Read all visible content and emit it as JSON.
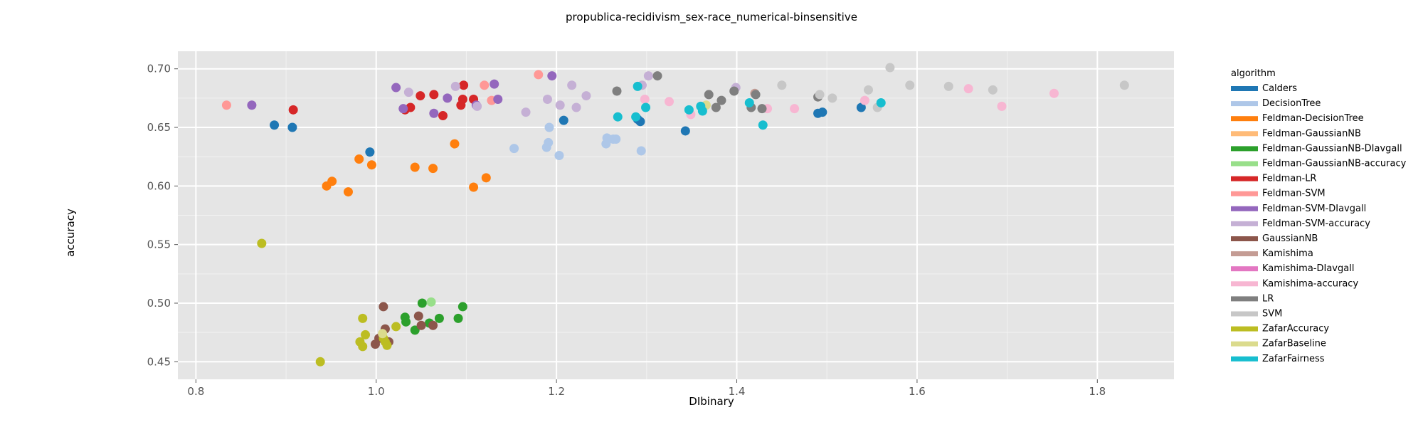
{
  "chart_data": {
    "type": "scatter",
    "title": "propublica-recidivism_sex-race_numerical-binsensitive",
    "xlabel": "DIbinary",
    "ylabel": "accuracy",
    "xlim": [
      0.78,
      1.885
    ],
    "ylim": [
      0.435,
      0.715
    ],
    "xticks": [
      0.8,
      1.0,
      1.2,
      1.4,
      1.6,
      1.8
    ],
    "xtick_labels": [
      "0.8",
      "1.0",
      "1.2",
      "1.4",
      "1.6",
      "1.8"
    ],
    "yticks": [
      0.45,
      0.5,
      0.55,
      0.6,
      0.65,
      0.7
    ],
    "ytick_labels": [
      "0.45",
      "0.50",
      "0.55",
      "0.60",
      "0.65",
      "0.70"
    ],
    "grid": true,
    "legend": {
      "title": "algorithm",
      "placement": "right"
    },
    "series": [
      {
        "name": "Calders",
        "color": "#1f77b4",
        "points": [
          [
            0.887,
            0.652
          ],
          [
            0.907,
            0.65
          ],
          [
            0.993,
            0.629
          ],
          [
            1.208,
            0.656
          ],
          [
            1.29,
            0.657
          ],
          [
            1.293,
            0.655
          ],
          [
            1.343,
            0.647
          ],
          [
            1.49,
            0.662
          ],
          [
            1.495,
            0.663
          ],
          [
            1.538,
            0.667
          ]
        ]
      },
      {
        "name": "DecisionTree",
        "color": "#aec7e8",
        "points": [
          [
            1.153,
            0.632
          ],
          [
            1.189,
            0.633
          ],
          [
            1.191,
            0.637
          ],
          [
            1.192,
            0.65
          ],
          [
            1.203,
            0.626
          ],
          [
            1.255,
            0.636
          ],
          [
            1.256,
            0.641
          ],
          [
            1.263,
            0.64
          ],
          [
            1.266,
            0.64
          ],
          [
            1.294,
            0.63
          ]
        ]
      },
      {
        "name": "Feldman-DecisionTree",
        "color": "#ff7f0e",
        "points": [
          [
            0.945,
            0.6
          ],
          [
            0.951,
            0.604
          ],
          [
            0.969,
            0.595
          ],
          [
            0.981,
            0.623
          ],
          [
            0.995,
            0.618
          ],
          [
            1.043,
            0.616
          ],
          [
            1.063,
            0.615
          ],
          [
            1.087,
            0.636
          ],
          [
            1.108,
            0.599
          ],
          [
            1.122,
            0.607
          ]
        ]
      },
      {
        "name": "Feldman-GaussianNB",
        "color": "#ffbb78",
        "points": []
      },
      {
        "name": "Feldman-GaussianNB-DIavgall",
        "color": "#2ca02c",
        "points": [
          [
            1.032,
            0.488
          ],
          [
            1.033,
            0.484
          ],
          [
            1.043,
            0.477
          ],
          [
            1.051,
            0.5
          ],
          [
            1.059,
            0.483
          ],
          [
            1.07,
            0.487
          ],
          [
            1.091,
            0.487
          ],
          [
            1.096,
            0.497
          ]
        ]
      },
      {
        "name": "Feldman-GaussianNB-accuracy",
        "color": "#98df8a",
        "points": [
          [
            1.061,
            0.501
          ]
        ]
      },
      {
        "name": "Feldman-LR",
        "color": "#d62728",
        "points": [
          [
            0.908,
            0.665
          ],
          [
            1.032,
            0.665
          ],
          [
            1.038,
            0.667
          ],
          [
            1.049,
            0.677
          ],
          [
            1.064,
            0.678
          ],
          [
            1.074,
            0.66
          ],
          [
            1.094,
            0.669
          ],
          [
            1.096,
            0.674
          ],
          [
            1.097,
            0.686
          ],
          [
            1.108,
            0.674
          ]
        ]
      },
      {
        "name": "Feldman-SVM",
        "color": "#ff9896",
        "points": [
          [
            0.834,
            0.669
          ],
          [
            1.12,
            0.686
          ],
          [
            1.128,
            0.673
          ],
          [
            1.18,
            0.695
          ]
        ]
      },
      {
        "name": "Feldman-SVM-DIavgall",
        "color": "#9467bd",
        "points": [
          [
            0.862,
            0.669
          ],
          [
            1.022,
            0.684
          ],
          [
            1.03,
            0.666
          ],
          [
            1.064,
            0.662
          ],
          [
            1.079,
            0.675
          ],
          [
            1.111,
            0.669
          ],
          [
            1.131,
            0.687
          ],
          [
            1.135,
            0.674
          ],
          [
            1.195,
            0.694
          ]
        ]
      },
      {
        "name": "Feldman-SVM-accuracy",
        "color": "#c5b0d5",
        "points": [
          [
            1.036,
            0.68
          ],
          [
            1.088,
            0.685
          ],
          [
            1.112,
            0.668
          ],
          [
            1.166,
            0.663
          ],
          [
            1.19,
            0.674
          ],
          [
            1.204,
            0.669
          ],
          [
            1.217,
            0.686
          ],
          [
            1.222,
            0.667
          ],
          [
            1.233,
            0.677
          ],
          [
            1.295,
            0.686
          ],
          [
            1.302,
            0.694
          ],
          [
            1.399,
            0.684
          ]
        ]
      },
      {
        "name": "GaussianNB",
        "color": "#8c564b",
        "points": [
          [
            0.999,
            0.465
          ],
          [
            1.003,
            0.47
          ],
          [
            1.008,
            0.497
          ],
          [
            1.01,
            0.478
          ],
          [
            1.012,
            0.465
          ],
          [
            1.014,
            0.467
          ],
          [
            1.047,
            0.489
          ],
          [
            1.05,
            0.481
          ],
          [
            1.063,
            0.481
          ]
        ]
      },
      {
        "name": "Kamishima",
        "color": "#c49c94",
        "points": [
          [
            1.42,
            0.679
          ]
        ]
      },
      {
        "name": "Kamishima-DIavgall",
        "color": "#e377c2",
        "points": []
      },
      {
        "name": "Kamishima-accuracy",
        "color": "#f7b6d2",
        "points": [
          [
            1.298,
            0.674
          ],
          [
            1.325,
            0.672
          ],
          [
            1.349,
            0.661
          ],
          [
            1.434,
            0.666
          ],
          [
            1.464,
            0.666
          ],
          [
            1.542,
            0.673
          ],
          [
            1.657,
            0.683
          ],
          [
            1.694,
            0.668
          ],
          [
            1.752,
            0.679
          ]
        ]
      },
      {
        "name": "LR",
        "color": "#7f7f7f",
        "points": [
          [
            1.267,
            0.681
          ],
          [
            1.312,
            0.694
          ],
          [
            1.369,
            0.678
          ],
          [
            1.377,
            0.667
          ],
          [
            1.383,
            0.673
          ],
          [
            1.397,
            0.681
          ],
          [
            1.416,
            0.667
          ],
          [
            1.421,
            0.678
          ],
          [
            1.428,
            0.666
          ],
          [
            1.49,
            0.676
          ]
        ]
      },
      {
        "name": "SVM",
        "color": "#c7c7c7",
        "points": [
          [
            1.45,
            0.686
          ],
          [
            1.492,
            0.678
          ],
          [
            1.506,
            0.675
          ],
          [
            1.546,
            0.682
          ],
          [
            1.556,
            0.667
          ],
          [
            1.57,
            0.701
          ],
          [
            1.592,
            0.686
          ],
          [
            1.635,
            0.685
          ],
          [
            1.684,
            0.682
          ],
          [
            1.83,
            0.686
          ]
        ]
      },
      {
        "name": "ZafarAccuracy",
        "color": "#bcbd22",
        "points": [
          [
            0.873,
            0.551
          ],
          [
            0.938,
            0.45
          ],
          [
            0.982,
            0.467
          ],
          [
            0.985,
            0.487
          ],
          [
            0.985,
            0.463
          ],
          [
            0.988,
            0.473
          ],
          [
            1.008,
            0.47
          ],
          [
            1.01,
            0.467
          ],
          [
            1.012,
            0.464
          ],
          [
            1.022,
            0.48
          ]
        ]
      },
      {
        "name": "ZafarBaseline",
        "color": "#dbdb8d",
        "points": [
          [
            1.007,
            0.474
          ],
          [
            1.366,
            0.669
          ]
        ]
      },
      {
        "name": "ZafarFairness",
        "color": "#17becf",
        "points": [
          [
            1.268,
            0.659
          ],
          [
            1.288,
            0.659
          ],
          [
            1.29,
            0.685
          ],
          [
            1.299,
            0.667
          ],
          [
            1.347,
            0.665
          ],
          [
            1.36,
            0.668
          ],
          [
            1.362,
            0.664
          ],
          [
            1.414,
            0.671
          ],
          [
            1.429,
            0.652
          ],
          [
            1.56,
            0.671
          ]
        ]
      }
    ]
  }
}
